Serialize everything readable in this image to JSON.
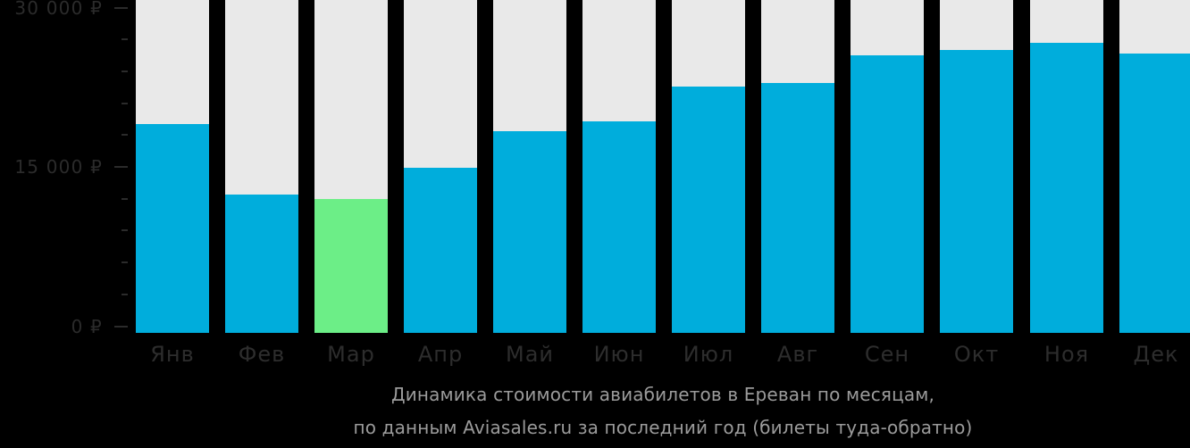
{
  "chart_data": {
    "type": "bar",
    "categories": [
      "Янв",
      "Фев",
      "Мар",
      "Апр",
      "Май",
      "Июн",
      "Июл",
      "Авг",
      "Сен",
      "Окт",
      "Ноя",
      "Дек"
    ],
    "values": [
      19000,
      12400,
      12000,
      14900,
      18400,
      19300,
      22600,
      22900,
      25500,
      26000,
      26700,
      25700
    ],
    "highlight_index": 2,
    "title": "Динамика стоимости авиабилетов в Ереван по месяцам,",
    "subtitle": "по данным Aviasales.ru за последний год (билеты туда-обратно)",
    "ylim": [
      0,
      30000
    ],
    "yticks_major": [
      {
        "value": 0,
        "label": "0 ₽"
      },
      {
        "value": 15000,
        "label": "15 000 ₽"
      },
      {
        "value": 30000,
        "label": "30 000 ₽"
      }
    ],
    "ytick_minor_step": 3000,
    "legend": "none",
    "grid": "off",
    "colors": {
      "bar": "#00ADDC",
      "highlight_bar": "#6CEE87",
      "column_background": "#E9E9E9",
      "axis_text": "#2B2B2B",
      "month_text": "#2D2D2D",
      "caption_text": "#9B9B9B",
      "background": "#000000"
    }
  }
}
